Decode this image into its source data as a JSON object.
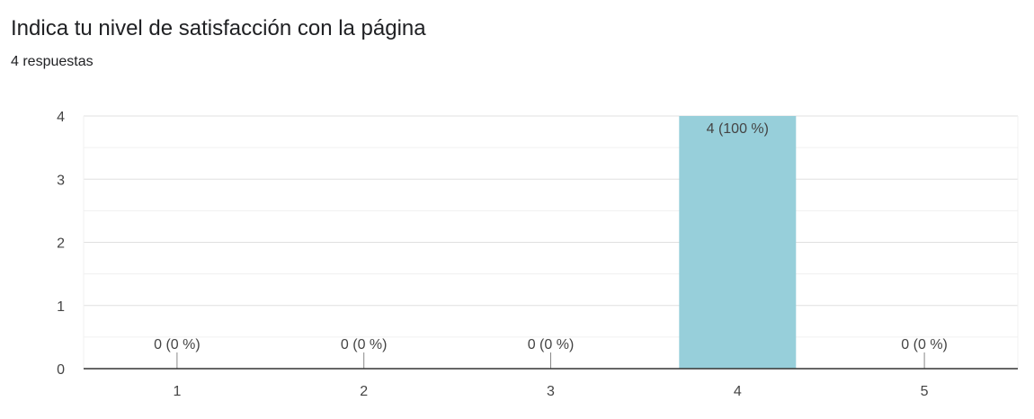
{
  "header": {
    "title": "Indica tu nivel de satisfacción con la página",
    "responses": "4 respuestas"
  },
  "colors": {
    "bar": "#97CFDA",
    "axis": "#333333",
    "grid_major": "#e0e0e0",
    "grid_minor": "#f0f0f0",
    "text": "#444444"
  },
  "chart_data": {
    "type": "bar",
    "categories": [
      "1",
      "2",
      "3",
      "4",
      "5"
    ],
    "values": [
      0,
      0,
      0,
      4,
      0
    ],
    "data_labels": [
      "0 (0 %)",
      "0 (0 %)",
      "0 (0 %)",
      "4 (100 %)",
      "0 (0 %)"
    ],
    "y_ticks": [
      "0",
      "1",
      "2",
      "3",
      "4"
    ],
    "ylim": [
      0,
      4
    ],
    "grid": true,
    "xlabel": "",
    "ylabel": ""
  }
}
